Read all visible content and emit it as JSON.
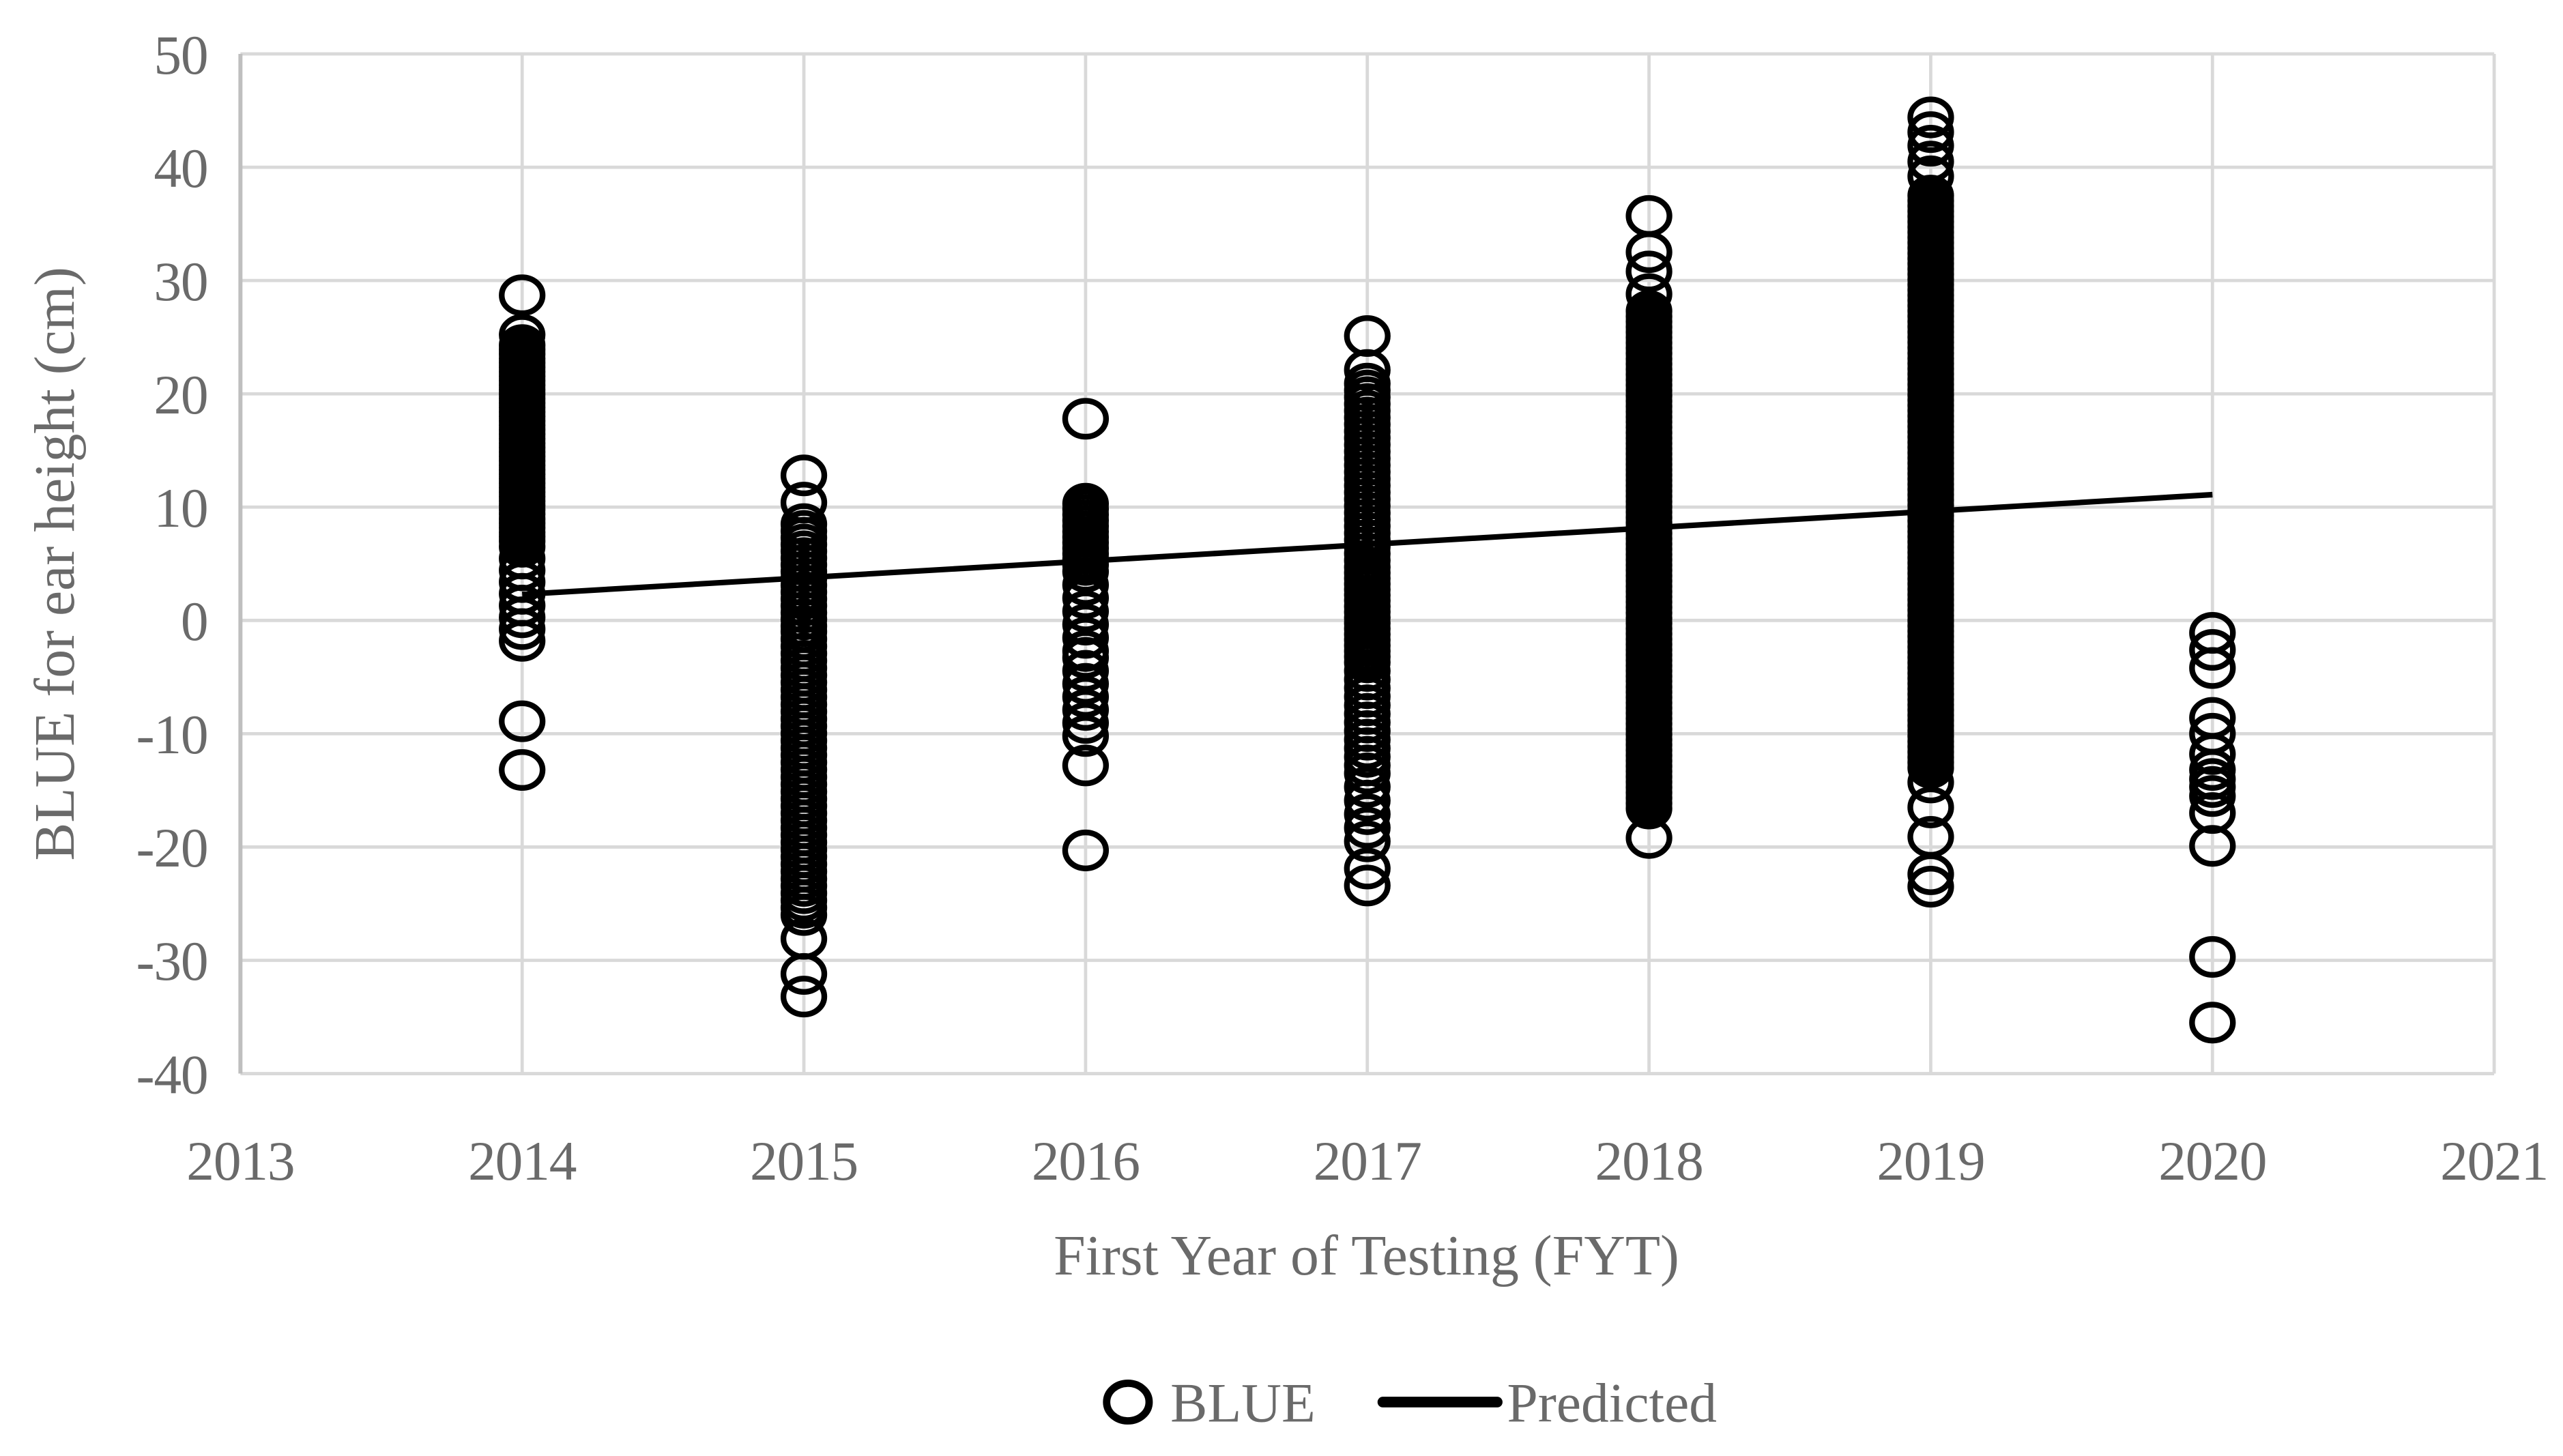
{
  "chart_data": {
    "type": "scatter",
    "title": "",
    "xlabel": "First Year of Testing (FYT)",
    "ylabel": "BLUE for ear height (cm)",
    "xlim": [
      2013,
      2021
    ],
    "ylim": [
      -40,
      50
    ],
    "x_ticks": [
      2013,
      2014,
      2015,
      2016,
      2017,
      2018,
      2019,
      2020,
      2021
    ],
    "y_ticks": [
      50,
      40,
      30,
      20,
      10,
      0,
      -10,
      -20,
      -30,
      -40
    ],
    "grid": true,
    "legend_position": "bottom-center",
    "series": [
      {
        "name": "BLUE",
        "type": "scatter",
        "marker": "open-circle",
        "color": "#000000",
        "columns": [
          {
            "x": 2014,
            "outliers": [
              28.7,
              25.2,
              -8.9,
              -13.2
            ],
            "bands": [
              {
                "from": 24.3,
                "to": 7.0,
                "count": 45
              },
              {
                "from": 6.5,
                "to": -1.8,
                "count": 9
              }
            ]
          },
          {
            "x": 2015,
            "outliers": [
              12.8,
              10.4,
              -28.1,
              -31.2,
              -33.2
            ],
            "bands": [
              {
                "from": 8.5,
                "to": -0.5,
                "count": 16
              },
              {
                "from": -1.0,
                "to": -26.0,
                "count": 40
              }
            ]
          },
          {
            "x": 2016,
            "outliers": [
              17.8,
              -12.8,
              -20.3
            ],
            "bands": [
              {
                "from": 10.3,
                "to": 4.9,
                "count": 12
              },
              {
                "from": 4.3,
                "to": -2.7,
                "count": 7
              },
              {
                "from": -3.3,
                "to": -10.2,
                "count": 7
              }
            ]
          },
          {
            "x": 2017,
            "outliers": [
              25.1,
              22.1,
              -19.5,
              -21.9,
              -23.4
            ],
            "bands": [
              {
                "from": 20.9,
                "to": 4.7,
                "count": 28
              },
              {
                "from": 4.2,
                "to": -3.2,
                "count": 16
              },
              {
                "from": -3.7,
                "to": -12.8,
                "count": 13
              },
              {
                "from": -13.5,
                "to": -18.3,
                "count": 5
              }
            ]
          },
          {
            "x": 2018,
            "outliers": [
              35.7,
              32.5,
              30.8,
              28.8,
              -19.2
            ],
            "bands": [
              {
                "from": 27.3,
                "to": -16.6,
                "count": 95
              }
            ]
          },
          {
            "x": 2019,
            "outliers": [
              44.4,
              43.1,
              41.9,
              40.5,
              39.2,
              -14.3,
              -16.5,
              -19.1,
              -22.4,
              -23.5
            ],
            "bands": [
              {
                "from": 37.5,
                "to": -13.0,
                "count": 110
              }
            ]
          },
          {
            "x": 2020,
            "outliers": [
              -1.1,
              -2.6,
              -4.2,
              -8.6,
              -10.0,
              -11.8,
              -13.2,
              -14.0,
              -14.7,
              -15.5,
              -17.0,
              -19.9,
              -29.7,
              -35.5
            ],
            "bands": []
          }
        ]
      },
      {
        "name": "Predicted",
        "type": "line",
        "color": "#000000",
        "points": [
          {
            "x": 2014,
            "y": 2.3
          },
          {
            "x": 2020,
            "y": 11.1
          }
        ]
      }
    ]
  },
  "colors": {
    "background": "#ffffff",
    "text": "#6a6a6a",
    "gridline": "#d9d9d9",
    "axis_line": "#bfbfbf",
    "marker": "#000000",
    "trend_line": "#000000"
  }
}
